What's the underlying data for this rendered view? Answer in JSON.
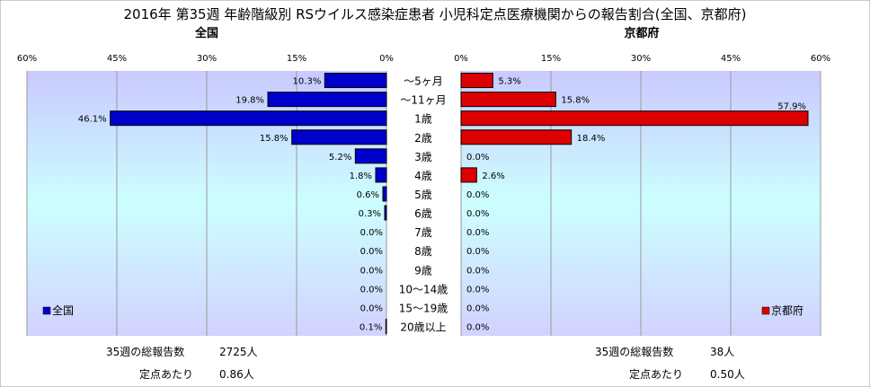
{
  "title": "2016年 第35週 年齢階級別 RSウイルス感染症患者 小児科定点医療機関からの報告割合(全国、京都府)",
  "chart_data": {
    "type": "bar",
    "orientation": "horizontal",
    "categories": [
      "～5ヶ月",
      "～11ヶ月",
      "1歳",
      "2歳",
      "3歳",
      "4歳",
      "5歳",
      "6歳",
      "7歳",
      "8歳",
      "9歳",
      "10～14歳",
      "15～19歳",
      "20歳以上"
    ],
    "unit": "%",
    "grid": true,
    "panels": [
      {
        "name": "全国",
        "direction": "left",
        "xlim": [
          0,
          60
        ],
        "ticks": [
          "60%",
          "45%",
          "30%",
          "15%",
          "0%"
        ],
        "tick_values": [
          60,
          45,
          30,
          15,
          0
        ],
        "values": [
          10.3,
          19.8,
          46.1,
          15.8,
          5.2,
          1.8,
          0.6,
          0.3,
          0.0,
          0.0,
          0.0,
          0.0,
          0.0,
          0.1
        ],
        "labels": [
          "10.3%",
          "19.8%",
          "46.1%",
          "15.8%",
          "5.2%",
          "1.8%",
          "0.6%",
          "0.3%",
          "0.0%",
          "0.0%",
          "0.0%",
          "0.0%",
          "0.0%",
          "0.1%"
        ],
        "color": "#0000cc",
        "legend": "全国",
        "legend_position": "bottom-left"
      },
      {
        "name": "京都府",
        "direction": "right",
        "xlim": [
          0,
          60
        ],
        "ticks": [
          "0%",
          "15%",
          "30%",
          "45%",
          "60%"
        ],
        "tick_values": [
          0,
          15,
          30,
          45,
          60
        ],
        "values": [
          5.3,
          15.8,
          57.9,
          18.4,
          0.0,
          2.6,
          0.0,
          0.0,
          0.0,
          0.0,
          0.0,
          0.0,
          0.0,
          0.0
        ],
        "labels": [
          "5.3%",
          "15.8%",
          "57.9%",
          "18.4%",
          "0.0%",
          "2.6%",
          "0.0%",
          "0.0%",
          "0.0%",
          "0.0%",
          "0.0%",
          "0.0%",
          "0.0%",
          "0.0%"
        ],
        "color": "#dd0000",
        "legend": "京都府",
        "legend_position": "bottom-right"
      }
    ]
  },
  "footer": {
    "left": {
      "reports_label": "35週の総報告数",
      "reports_value": "2725人",
      "per_site_label": "定点あたり",
      "per_site_value": "0.86人"
    },
    "right": {
      "reports_label": "35週の総報告数",
      "reports_value": "38人",
      "per_site_label": "定点あたり",
      "per_site_value": "0.50人"
    }
  },
  "colors": {
    "national": "#0000cc",
    "kyoto": "#dd0000",
    "panel_gradient_top": "#ccccff",
    "panel_gradient_mid": "#ccffff"
  }
}
